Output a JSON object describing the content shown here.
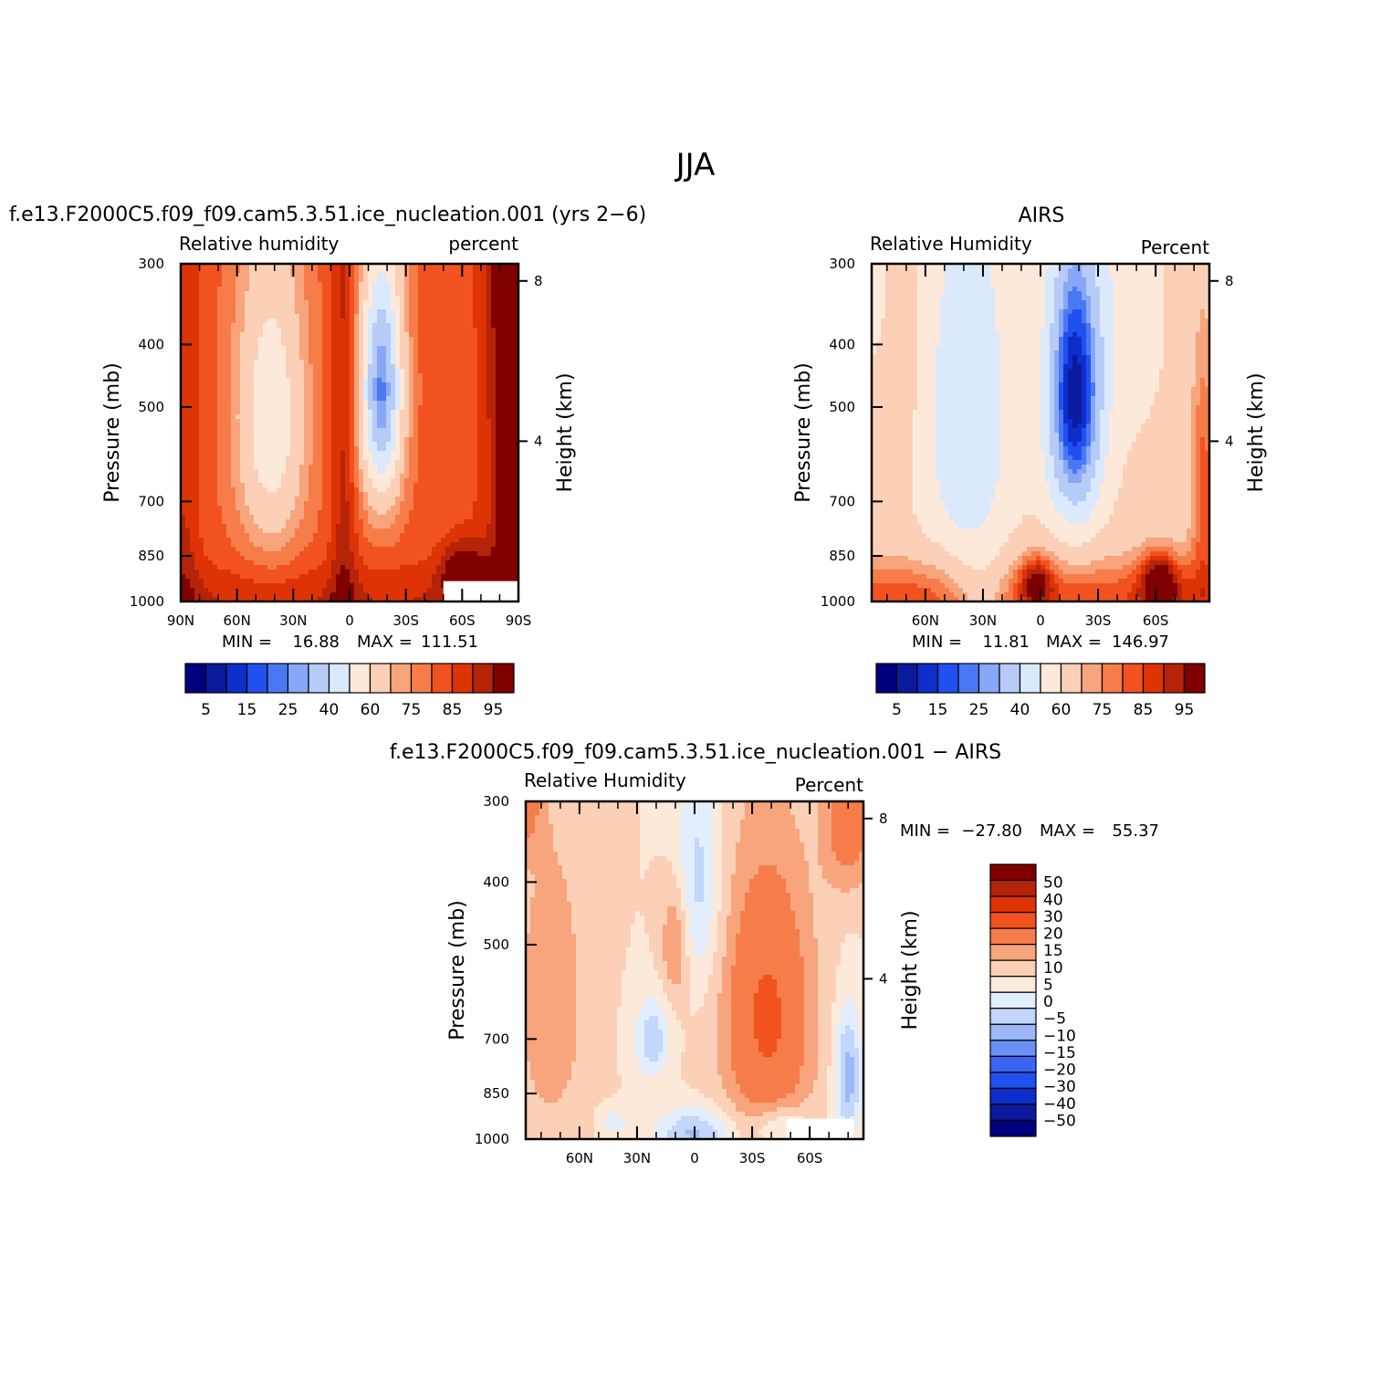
{
  "figure": {
    "title": "JJA"
  },
  "colors": {
    "rh": [
      "#00007f",
      "#0a1b9e",
      "#0d2ecb",
      "#2150f0",
      "#4a78f5",
      "#87a8f7",
      "#b7cbf8",
      "#dbe9fc",
      "#fde9da",
      "#fcd0b6",
      "#f8a47c",
      "#f67d4a",
      "#f15220",
      "#de3405",
      "#b52308",
      "#800000"
    ],
    "diff": [
      "#00007f",
      "#0a1b9e",
      "#0d2ecb",
      "#2150f0",
      "#3a64f2",
      "#6c90f6",
      "#9cb8f8",
      "#c3d6fb",
      "#e2eefd",
      "#fde9da",
      "#fcd0b6",
      "#f8a47c",
      "#f67d4a",
      "#f15220",
      "#de3405",
      "#b52308",
      "#800000"
    ]
  },
  "chart_data": [
    {
      "type": "heatmap",
      "id": "model",
      "title": "f.e13.F2000C5.f09_f09.cam5.3.51.ice_nucleation.001 (yrs 2−6)",
      "left_label": "Relative humidity",
      "right_label": "percent",
      "ylabel": "Pressure (mb)",
      "ylabel_right": "Height (km)",
      "xticks": [
        "90N",
        "60N",
        "30N",
        "0",
        "30S",
        "60S",
        "90S"
      ],
      "xtick_lat": [
        90,
        60,
        30,
        0,
        -30,
        -60,
        -90
      ],
      "xlim": [
        90,
        -90
      ],
      "yticks": [
        "300",
        "400",
        "500",
        "700",
        "850",
        "1000"
      ],
      "ytick_p": [
        300,
        400,
        500,
        700,
        850,
        1000
      ],
      "ylim": [
        1000,
        300
      ],
      "height_ticks": [
        "8",
        "4"
      ],
      "height_km": [
        8,
        4
      ],
      "stats": {
        "min_label": "MIN =",
        "min": "16.88",
        "max_label": "MAX =",
        "max": "111.51"
      },
      "colorbar_labels": [
        "5",
        "15",
        "25",
        "40",
        "60",
        "75",
        "85",
        "95"
      ],
      "levels": [
        5,
        10,
        15,
        20,
        25,
        30,
        40,
        50,
        60,
        70,
        75,
        80,
        85,
        90,
        95
      ],
      "missing": {
        "lat_from": -50,
        "lat_to": -90,
        "p_from": 930,
        "p_to": 1000
      }
    },
    {
      "type": "heatmap",
      "id": "airs",
      "title": "AIRS",
      "left_label": "Relative Humidity",
      "right_label": "Percent",
      "ylabel": "Pressure (mb)",
      "ylabel_right": "Height (km)",
      "xticks": [
        "60N",
        "30N",
        "0",
        "30S",
        "60S"
      ],
      "xtick_lat": [
        60,
        30,
        0,
        -30,
        -60
      ],
      "xlim": [
        88,
        -88
      ],
      "yticks": [
        "300",
        "400",
        "500",
        "700",
        "850",
        "1000"
      ],
      "ytick_p": [
        300,
        400,
        500,
        700,
        850,
        1000
      ],
      "ylim": [
        1000,
        300
      ],
      "height_ticks": [
        "8",
        "4"
      ],
      "height_km": [
        8,
        4
      ],
      "stats": {
        "min_label": "MIN =",
        "min": "11.81",
        "max_label": "MAX =",
        "max": "146.97"
      },
      "colorbar_labels": [
        "5",
        "15",
        "25",
        "40",
        "60",
        "75",
        "85",
        "95"
      ],
      "levels": [
        5,
        10,
        15,
        20,
        25,
        30,
        40,
        50,
        60,
        70,
        75,
        80,
        85,
        90,
        95
      ]
    },
    {
      "type": "heatmap",
      "id": "diff",
      "title": "f.e13.F2000C5.f09_f09.cam5.3.51.ice_nucleation.001 − AIRS",
      "left_label": "Relative Humidity",
      "right_label": "Percent",
      "ylabel": "Pressure (mb)",
      "ylabel_right": "Height (km)",
      "xticks": [
        "60N",
        "30N",
        "0",
        "30S",
        "60S"
      ],
      "xtick_lat": [
        60,
        30,
        0,
        -30,
        -60
      ],
      "xlim": [
        88,
        -88
      ],
      "yticks": [
        "300",
        "400",
        "500",
        "700",
        "850",
        "1000"
      ],
      "ytick_p": [
        300,
        400,
        500,
        700,
        850,
        1000
      ],
      "ylim": [
        1000,
        300
      ],
      "height_ticks": [
        "8",
        "4"
      ],
      "height_km": [
        8,
        4
      ],
      "stats": {
        "min_label": "MIN =",
        "min": "−27.80",
        "max_label": "MAX =",
        "max": "55.37"
      },
      "colorbar_labels": [
        "50",
        "40",
        "30",
        "20",
        "15",
        "10",
        "5",
        "0",
        "−5",
        "−10",
        "−15",
        "−20",
        "−30",
        "−40",
        "−50"
      ],
      "levels": [
        -50,
        -40,
        -30,
        -20,
        -15,
        -10,
        -5,
        0,
        5,
        10,
        15,
        20,
        30,
        40,
        50
      ],
      "missing": {
        "lat_from": -48,
        "lat_to": -83,
        "p_from": 930,
        "p_to": 1000
      }
    }
  ]
}
